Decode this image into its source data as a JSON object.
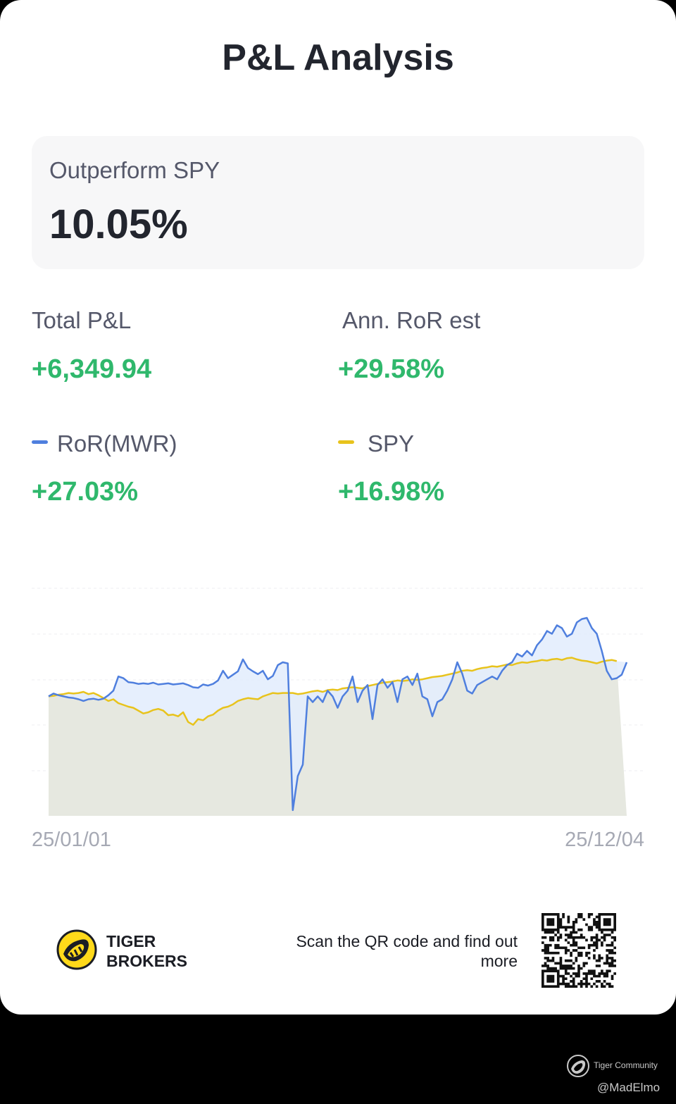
{
  "title": "P&L Analysis",
  "summary": {
    "label": "Outperform SPY",
    "value": "10.05%"
  },
  "metrics": {
    "total_pl": {
      "label": "Total P&L",
      "value": "+6,349.94"
    },
    "ann_ror": {
      "label": "Ann. RoR est",
      "value": "+29.58%"
    },
    "ror_mwr": {
      "label": "RoR(MWR)",
      "value": "+27.03%",
      "color": "#4f7fde"
    },
    "spy": {
      "label": "SPY",
      "value": "+16.98%",
      "color": "#e8c31c"
    }
  },
  "chart_data": {
    "type": "line",
    "x_start": "25/01/01",
    "x_end": "25/12/04",
    "y_baseline": 0,
    "series": [
      {
        "name": "RoR(MWR)",
        "color": "#4f7fde",
        "values": [
          0,
          0.5,
          0.2,
          0,
          -0.2,
          -0.3,
          -0.5,
          -0.8,
          -0.5,
          -0.4,
          -0.6,
          -0.4,
          0.2,
          1,
          3.5,
          3.2,
          2.5,
          2.4,
          2.2,
          2.3,
          2.2,
          2.4,
          2.1,
          2.2,
          2.3,
          2.1,
          2.2,
          2.3,
          2,
          1.6,
          1.5,
          2.1,
          1.9,
          2.2,
          2.8,
          4.5,
          3.2,
          3.8,
          4.4,
          6.5,
          5,
          4.4,
          3.9,
          4.5,
          3,
          3.6,
          5.5,
          6,
          5.8,
          -20,
          -14,
          -12,
          0,
          -1,
          0,
          -1,
          1,
          0,
          -2,
          0,
          1,
          3.5,
          -1,
          1,
          2,
          -4,
          2,
          3,
          1.5,
          2.5,
          -1,
          3,
          3.5,
          2,
          4,
          0,
          -0.5,
          -3.5,
          -1,
          -0.5,
          1,
          3,
          6,
          4,
          1,
          0.5,
          2,
          2.5,
          3,
          3.5,
          3,
          4.5,
          5.5,
          6,
          7.5,
          7,
          8,
          7.2,
          9,
          10,
          11.5,
          11,
          12.5,
          12,
          10.5,
          11,
          13,
          13.6,
          13.8,
          12,
          11,
          8,
          4.5,
          3,
          3.2,
          3.8,
          6
        ]
      },
      {
        "name": "SPY",
        "color": "#e8c31c",
        "values": [
          0,
          0.1,
          0.3,
          0.4,
          0.6,
          0.5,
          0.6,
          0.8,
          0.4,
          0.6,
          0.2,
          -0.3,
          -0.8,
          -0.5,
          -1.2,
          -1.5,
          -1.8,
          -2,
          -2.5,
          -3,
          -2.8,
          -2.4,
          -2.2,
          -2.5,
          -3.3,
          -3.2,
          -3.5,
          -2.8,
          -4.5,
          -5,
          -4,
          -4.2,
          -3.5,
          -3.2,
          -2.5,
          -2,
          -1.8,
          -1.4,
          -0.8,
          -0.5,
          -0.3,
          -0.4,
          -0.5,
          0,
          0.3,
          0.6,
          0.5,
          0.6,
          0.6,
          0.6,
          0.4,
          0.5,
          0.7,
          0.9,
          1,
          0.8,
          1.1,
          1.2,
          1.1,
          1.4,
          1.5,
          1.6,
          1.5,
          1.4,
          1.8,
          2,
          2.2,
          2.4,
          2.5,
          2.6,
          2.8,
          2.7,
          2.8,
          3,
          2.9,
          3,
          3.2,
          3.4,
          3.5,
          3.6,
          3.8,
          4,
          4.2,
          4.5,
          4.6,
          4.5,
          4.8,
          5,
          5.1,
          5.3,
          5.2,
          5.4,
          5.6,
          5.5,
          5.8,
          6,
          5.9,
          6.1,
          6.2,
          6.4,
          6.3,
          6.5,
          6.6,
          6.4,
          6.7,
          6.8,
          6.5,
          6.3,
          6.2,
          6,
          5.8,
          6.1,
          6.3,
          6.4,
          6.2
        ]
      }
    ]
  },
  "footer": {
    "brand": [
      "TIGER",
      "BROKERS"
    ],
    "scan_text": "Scan the QR code and find out more",
    "community": "Tiger Community",
    "handle": "@MadElmo"
  },
  "colors": {
    "positive": "#2fb86c",
    "fill": "#e6e8e0",
    "diff_fill": "#e3edfd"
  }
}
